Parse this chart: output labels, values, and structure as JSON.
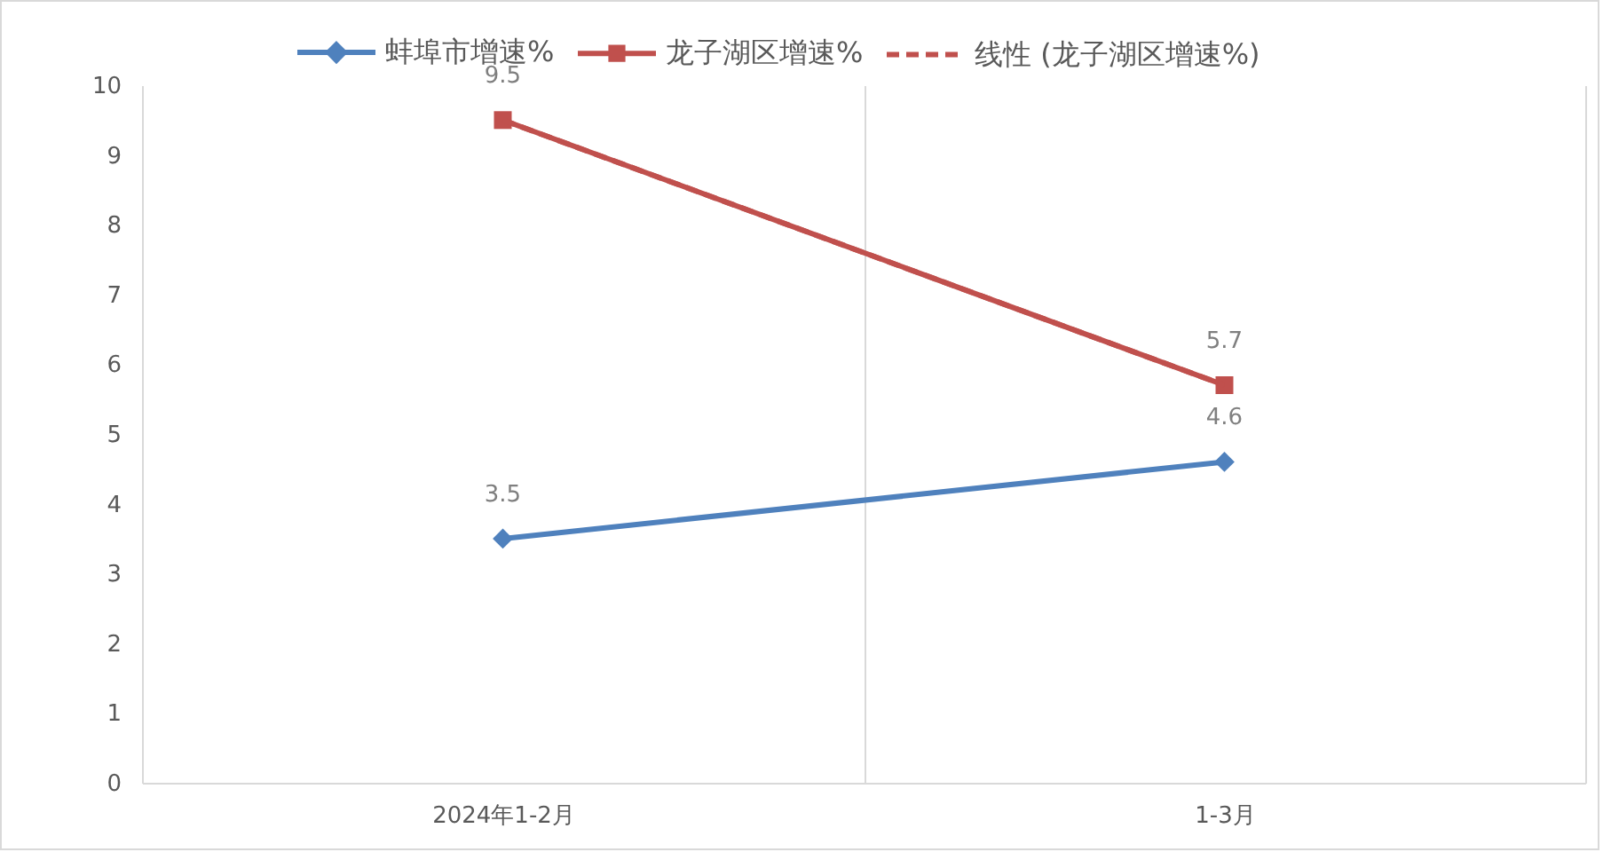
{
  "chart_data": {
    "type": "line",
    "categories": [
      "2024年1-2月",
      "1-3月"
    ],
    "series": [
      {
        "name": "蚌埠市增速%",
        "color": "#4f81bd",
        "values": [
          3.5,
          4.6
        ],
        "marker": "diamond",
        "value_labels": [
          "3.5",
          "4.6"
        ]
      },
      {
        "name": "龙子湖区增速%",
        "color": "#c0504d",
        "values": [
          9.5,
          5.7
        ],
        "marker": "square",
        "value_labels": [
          "9.5",
          "5.7"
        ]
      },
      {
        "name": "线性 (龙子湖区增速%)",
        "type": "line",
        "color": "#c0504d",
        "values": [
          9.5,
          5.7
        ],
        "marker": "none",
        "line_style": "dashed"
      }
    ],
    "ylim": [
      0,
      10
    ],
    "yticks": [
      0,
      1,
      2,
      3,
      4,
      5,
      6,
      7,
      8,
      9,
      10
    ],
    "grid": "x",
    "legend": "top"
  }
}
